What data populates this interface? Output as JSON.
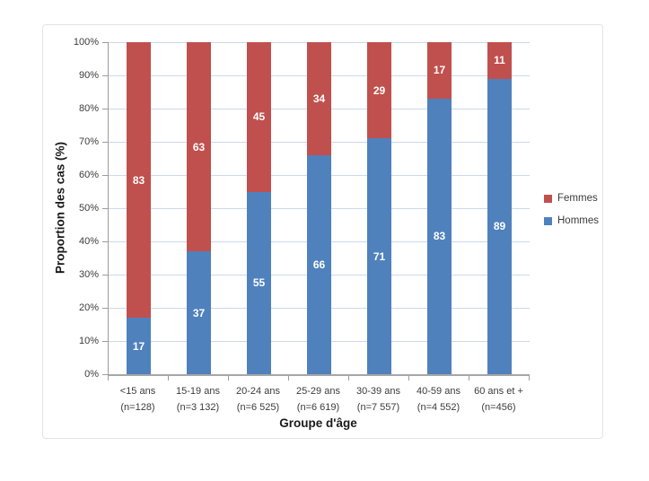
{
  "chart_data": {
    "type": "bar",
    "variant": "stacked-100-percent",
    "title": "",
    "xlabel": "Groupe d'âge",
    "ylabel": "Proportion des cas (%)",
    "categories": [
      "<15 ans",
      "15-19 ans",
      "20-24 ans",
      "25-29 ans",
      "30-39 ans",
      "40-59 ans",
      "60 ans et +"
    ],
    "category_counts": [
      "(n=128)",
      "(n=3 132)",
      "(n=6 525)",
      "(n=6 619)",
      "(n=7 557)",
      "(n=4 552)",
      "(n=456)"
    ],
    "series": [
      {
        "name": "Femmes",
        "color": "#C0504D",
        "values": [
          83,
          63,
          45,
          34,
          29,
          17,
          11
        ]
      },
      {
        "name": "Hommes",
        "color": "#4F81BD",
        "values": [
          17,
          37,
          55,
          66,
          71,
          83,
          89
        ]
      }
    ],
    "legend_order": [
      "Femmes",
      "Hommes"
    ],
    "legend_position": "right",
    "y_ticks": [
      0,
      10,
      20,
      30,
      40,
      50,
      60,
      70,
      80,
      90,
      100
    ],
    "y_tick_suffix": "%",
    "ylim": [
      0,
      100
    ],
    "grid": true
  },
  "colors": {
    "femmes": "#C0504D",
    "hommes": "#4F81BD",
    "gridline": "#cbd8ec",
    "axis": "#9c9c9c",
    "data_label": "#ffffff",
    "text": "#3b3b3b",
    "frame_border": "#e3e3e3",
    "background": "#ffffff"
  }
}
